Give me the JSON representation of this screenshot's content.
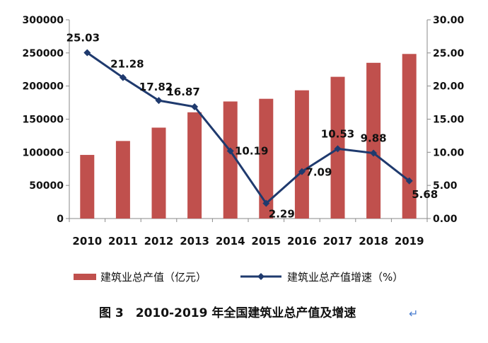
{
  "chart_data": {
    "type": "bar",
    "categories": [
      "2010",
      "2011",
      "2012",
      "2013",
      "2014",
      "2015",
      "2016",
      "2017",
      "2018",
      "2019"
    ],
    "series": [
      {
        "name": "建筑业总产值（亿元）",
        "type": "bar",
        "axis": "left",
        "values": [
          96031,
          117059,
          137218,
          160366,
          176713,
          180757,
          193567,
          213944,
          235086,
          248446
        ]
      },
      {
        "name": "建筑业总产值增速（%）",
        "type": "line",
        "axis": "right",
        "values": [
          25.03,
          21.28,
          17.82,
          16.87,
          10.19,
          2.29,
          7.09,
          10.53,
          9.88,
          5.68
        ],
        "labels": [
          "25.03",
          "21.28",
          "17.82",
          "16.87",
          "10.19",
          "2.29",
          "7.09",
          "10.53",
          "9.88",
          "5.68"
        ]
      }
    ],
    "left_axis": {
      "ylim": [
        0,
        300000
      ],
      "ticks": [
        "0",
        "50000",
        "100000",
        "150000",
        "200000",
        "250000",
        "300000"
      ]
    },
    "right_axis": {
      "ylim": [
        0,
        30
      ],
      "ticks": [
        "0.00",
        "5.00",
        "10.00",
        "15.00",
        "20.00",
        "25.00",
        "30.00"
      ]
    },
    "legend_position": "bottom",
    "caption": "图 3　2010-2019 年全国建筑业总产值及增速",
    "caption_mark": "↵",
    "colors": {
      "bar": "#c0504d",
      "line": "#1f3a6e",
      "axis": "#888888"
    }
  }
}
